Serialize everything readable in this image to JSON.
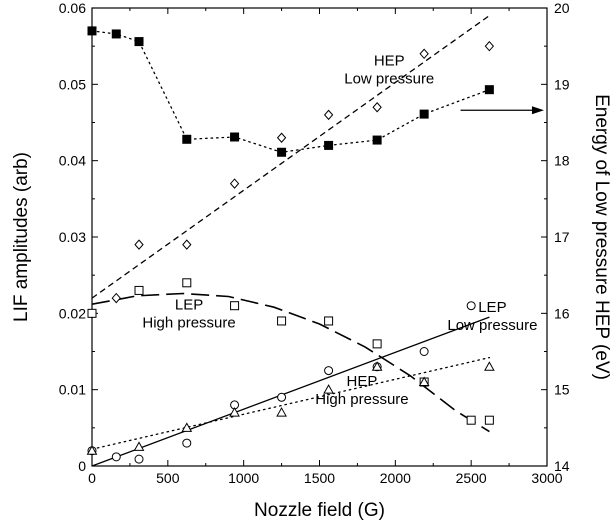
{
  "chart_data": {
    "type": "scatter",
    "xlabel": "Nozzle field (G)",
    "ylabel": "LIF amplitudes (arb)",
    "y2label": "Energy of Low pressure HEP (eV)",
    "xlim": [
      0,
      3000
    ],
    "ylim": [
      0,
      0.06
    ],
    "y2lim": [
      14,
      20
    ],
    "xticks": [
      "0",
      "500",
      "1000",
      "1500",
      "2000",
      "2500",
      "3000"
    ],
    "yticks": [
      "0",
      "0.01",
      "0.02",
      "0.03",
      "0.04",
      "0.05",
      "0.06"
    ],
    "y2ticks": [
      "14",
      "15",
      "16",
      "17",
      "18",
      "19",
      "20"
    ],
    "grid": false,
    "series": [
      {
        "marker": "filled-square",
        "axis": "right",
        "line": "dotted",
        "x": [
          0,
          160,
          310,
          625,
          940,
          1250,
          1560,
          1880,
          2190,
          2620
        ],
        "y": [
          19.7,
          19.66,
          19.56,
          18.28,
          18.31,
          18.11,
          18.2,
          18.27,
          18.61,
          18.93
        ]
      },
      {
        "marker": "open-diamond",
        "axis": "left",
        "x": [
          0,
          160,
          310,
          625,
          940,
          1250,
          1560,
          1880,
          2190,
          2620
        ],
        "y": [
          0.02,
          0.022,
          0.029,
          0.029,
          0.037,
          0.043,
          0.046,
          0.047,
          0.054,
          0.055
        ]
      },
      {
        "marker": "open-square",
        "axis": "left",
        "x": [
          0,
          310,
          625,
          940,
          1250,
          1560,
          1880,
          2190,
          2500,
          2620
        ],
        "y": [
          0.02,
          0.023,
          0.024,
          0.021,
          0.019,
          0.019,
          0.016,
          0.011,
          0.006,
          0.006
        ]
      },
      {
        "marker": "open-circle",
        "axis": "left",
        "x": [
          0,
          160,
          310,
          625,
          940,
          1250,
          1560,
          1880,
          2190,
          2500
        ],
        "y": [
          0.002,
          0.0012,
          0.0009,
          0.003,
          0.008,
          0.009,
          0.0125,
          0.013,
          0.015,
          0.021
        ]
      },
      {
        "marker": "open-triangle",
        "axis": "left",
        "x": [
          0,
          310,
          625,
          940,
          1250,
          1560,
          1880,
          2190,
          2620
        ],
        "y": [
          0.002,
          0.0025,
          0.005,
          0.007,
          0.007,
          0.01,
          0.013,
          0.011,
          0.013
        ]
      }
    ],
    "fits": [
      {
        "style": "dashed-short",
        "axis": "left",
        "kind": "line",
        "x": [
          0,
          2620
        ],
        "y": [
          0.022,
          0.059
        ]
      },
      {
        "style": "dashed-long",
        "axis": "left",
        "kind": "curve",
        "x": [
          0,
          300,
          600,
          900,
          1200,
          1500,
          1800,
          2100,
          2400,
          2620
        ],
        "y": [
          0.0212,
          0.0223,
          0.0226,
          0.0222,
          0.0208,
          0.0186,
          0.0156,
          0.0118,
          0.0072,
          0.0045
        ]
      },
      {
        "style": "solid",
        "axis": "left",
        "kind": "line",
        "x": [
          0,
          2620
        ],
        "y": [
          0.0,
          0.0195
        ]
      },
      {
        "style": "dotted",
        "axis": "left",
        "kind": "line",
        "x": [
          0,
          2620
        ],
        "y": [
          0.0022,
          0.0142
        ]
      }
    ],
    "annotations": [
      {
        "lines": [
          "HEP",
          "Low pressure"
        ],
        "x": 1960,
        "y": 0.0525,
        "align": "middle"
      },
      {
        "lines": [
          "LEP",
          "High pressure"
        ],
        "x": 640,
        "y": 0.0205,
        "align": "middle"
      },
      {
        "lines": [
          "LEP",
          "Low pressure"
        ],
        "x": 2640,
        "y": 0.0202,
        "align": "middle"
      },
      {
        "lines": [
          "HEP",
          "High pressure"
        ],
        "x": 1780,
        "y": 0.0105,
        "align": "middle"
      }
    ],
    "arrow": {
      "from_x": 2430,
      "to_x": 2980,
      "y": 0.0466
    }
  }
}
